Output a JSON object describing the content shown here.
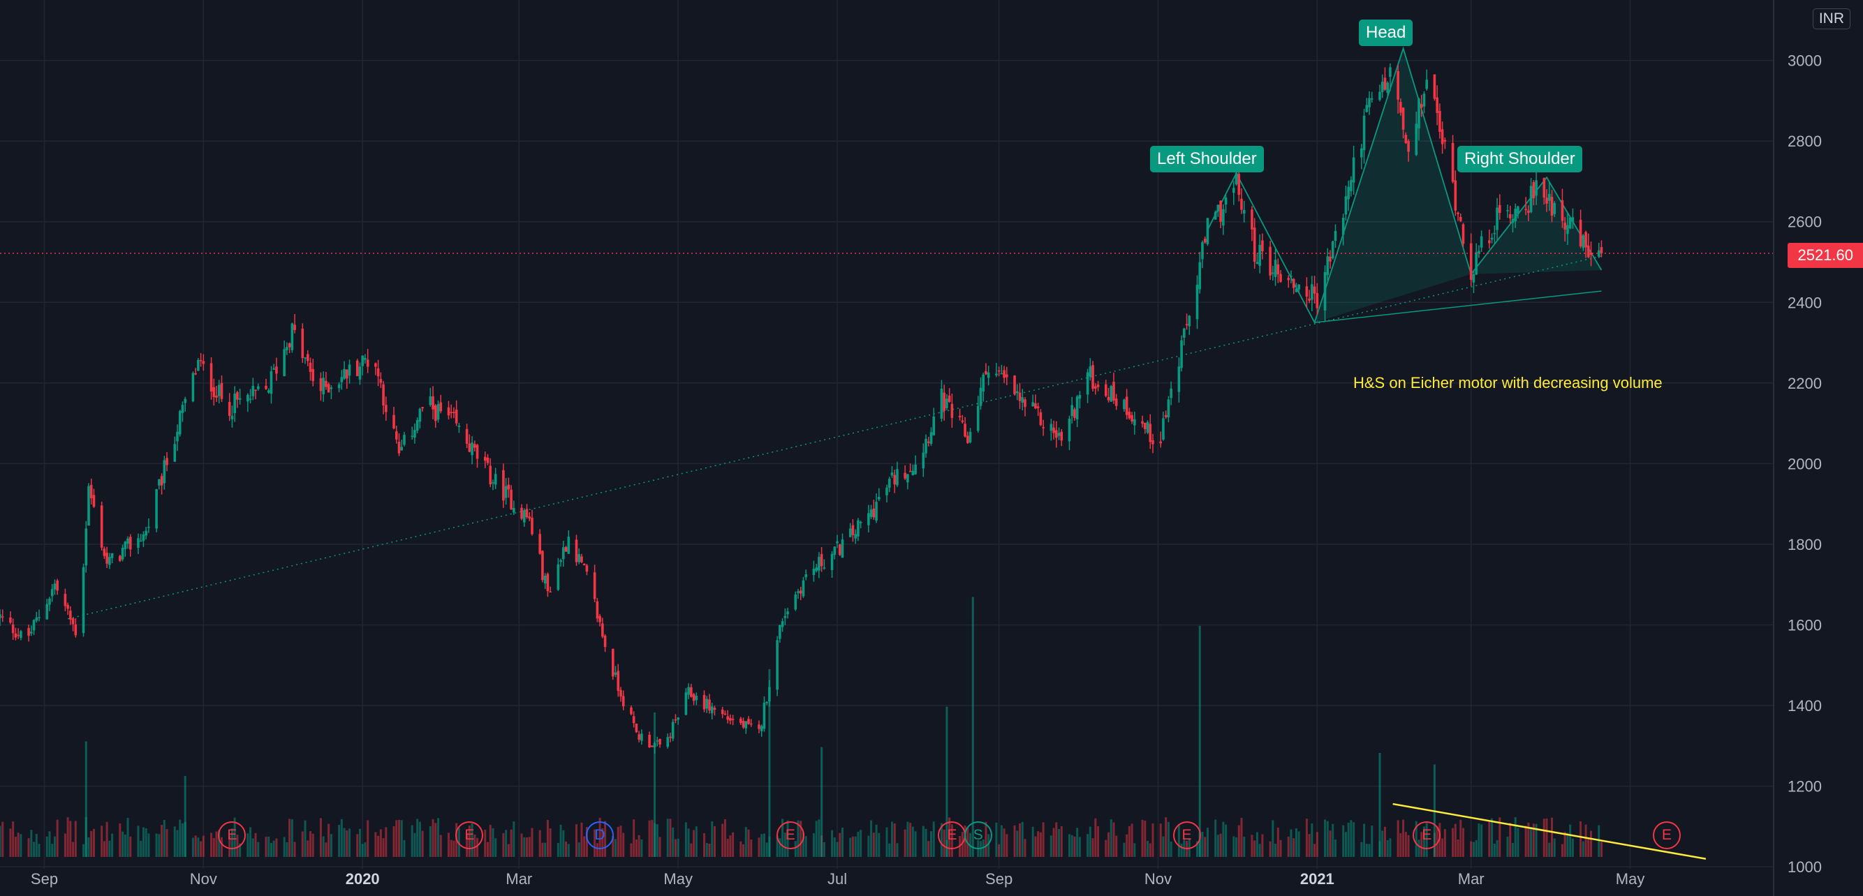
{
  "currency": "INR",
  "last_price": "2521.60",
  "annotations": {
    "left_shoulder": "Left Shoulder",
    "head": "Head",
    "right_shoulder": "Right Shoulder",
    "note": "H&S on Eicher motor with decreasing volume"
  },
  "colors": {
    "up": "#089981",
    "down": "#f23645",
    "background": "#131722",
    "grid": "#232632",
    "note": "#ffeb3b"
  },
  "events": [
    {
      "label": "E",
      "type": "earnings",
      "date": "2019-11-12"
    },
    {
      "label": "E",
      "type": "earnings",
      "date": "2020-02-11"
    },
    {
      "label": "D",
      "type": "dividend",
      "date": "2020-04-01"
    },
    {
      "label": "E",
      "type": "earnings",
      "date": "2020-06-13"
    },
    {
      "label": "E",
      "type": "earnings",
      "date": "2020-08-14"
    },
    {
      "label": "S",
      "type": "split",
      "date": "2020-08-24"
    },
    {
      "label": "E",
      "type": "earnings",
      "date": "2020-11-12"
    },
    {
      "label": "E",
      "type": "earnings",
      "date": "2021-02-12"
    },
    {
      "label": "E",
      "type": "earnings",
      "date": "2021-05-15"
    }
  ],
  "chart_data": {
    "type": "candlestick",
    "title": "",
    "y_axis": {
      "ticks": [
        1000,
        1200,
        1400,
        1600,
        1800,
        2000,
        2200,
        2400,
        2600,
        2800,
        3000
      ],
      "range": [
        995,
        3150
      ]
    },
    "x_axis": {
      "ticks": [
        {
          "label": "Sep",
          "date": "2019-09-01",
          "bold": false
        },
        {
          "label": "Nov",
          "date": "2019-11-01",
          "bold": false
        },
        {
          "label": "2020",
          "date": "2020-01-01",
          "bold": true
        },
        {
          "label": "Mar",
          "date": "2020-03-01",
          "bold": false
        },
        {
          "label": "May",
          "date": "2020-05-01",
          "bold": false
        },
        {
          "label": "Jul",
          "date": "2020-07-01",
          "bold": false
        },
        {
          "label": "Sep",
          "date": "2020-09-01",
          "bold": false
        },
        {
          "label": "Nov",
          "date": "2020-11-01",
          "bold": false
        },
        {
          "label": "2021",
          "date": "2021-01-01",
          "bold": true
        },
        {
          "label": "Mar",
          "date": "2021-03-01",
          "bold": false
        },
        {
          "label": "May",
          "date": "2021-05-01",
          "bold": false
        }
      ],
      "range": [
        "2019-08-15",
        "2021-06-25"
      ]
    },
    "price_keypoints": [
      [
        "2019-08-15",
        1620
      ],
      [
        "2019-08-25",
        1560
      ],
      [
        "2019-09-05",
        1700
      ],
      [
        "2019-09-14",
        1570
      ],
      [
        "2019-09-18",
        1940
      ],
      [
        "2019-09-25",
        1750
      ],
      [
        "2019-10-10",
        1830
      ],
      [
        "2019-10-20",
        2050
      ],
      [
        "2019-10-30",
        2250
      ],
      [
        "2019-11-10",
        2140
      ],
      [
        "2019-11-25",
        2180
      ],
      [
        "2019-12-05",
        2330
      ],
      [
        "2019-12-15",
        2180
      ],
      [
        "2019-12-25",
        2220
      ],
      [
        "2020-01-05",
        2270
      ],
      [
        "2020-01-15",
        2020
      ],
      [
        "2020-01-25",
        2150
      ],
      [
        "2020-02-05",
        2100
      ],
      [
        "2020-02-20",
        1960
      ],
      [
        "2020-03-05",
        1860
      ],
      [
        "2020-03-12",
        1680
      ],
      [
        "2020-03-20",
        1820
      ],
      [
        "2020-03-28",
        1700
      ],
      [
        "2020-04-05",
        1500
      ],
      [
        "2020-04-15",
        1330
      ],
      [
        "2020-04-25",
        1290
      ],
      [
        "2020-05-05",
        1430
      ],
      [
        "2020-05-20",
        1370
      ],
      [
        "2020-06-01",
        1330
      ],
      [
        "2020-06-10",
        1620
      ],
      [
        "2020-06-20",
        1730
      ],
      [
        "2020-06-30",
        1780
      ],
      [
        "2020-07-12",
        1860
      ],
      [
        "2020-07-22",
        1960
      ],
      [
        "2020-08-01",
        2010
      ],
      [
        "2020-08-10",
        2160
      ],
      [
        "2020-08-20",
        2060
      ],
      [
        "2020-08-28",
        2250
      ],
      [
        "2020-09-10",
        2150
      ],
      [
        "2020-09-25",
        2060
      ],
      [
        "2020-10-05",
        2220
      ],
      [
        "2020-10-20",
        2140
      ],
      [
        "2020-11-01",
        2050
      ],
      [
        "2020-11-10",
        2280
      ],
      [
        "2020-11-20",
        2580
      ],
      [
        "2020-12-01",
        2690
      ],
      [
        "2020-12-08",
        2530
      ],
      [
        "2020-12-20",
        2460
      ],
      [
        "2021-01-01",
        2410
      ],
      [
        "2021-01-10",
        2600
      ],
      [
        "2021-01-20",
        2870
      ],
      [
        "2021-01-30",
        2970
      ],
      [
        "2021-02-05",
        2750
      ],
      [
        "2021-02-12",
        2960
      ],
      [
        "2021-02-20",
        2750
      ],
      [
        "2021-03-01",
        2480
      ],
      [
        "2021-03-10",
        2600
      ],
      [
        "2021-03-20",
        2640
      ],
      [
        "2021-03-28",
        2680
      ],
      [
        "2021-04-07",
        2600
      ],
      [
        "2021-04-15",
        2520
      ],
      [
        "2021-04-20",
        2521.6
      ]
    ],
    "neckline": [
      [
        "2019-09-10",
        1615
      ],
      [
        "2021-04-20",
        2515
      ]
    ],
    "pattern_points": [
      [
        "2020-11-20",
        2580
      ],
      [
        "2020-12-01",
        2720
      ],
      [
        "2020-12-31",
        2350
      ],
      [
        "2021-02-03",
        3030
      ],
      [
        "2021-03-01",
        2470
      ],
      [
        "2021-03-30",
        2710
      ],
      [
        "2021-04-20",
        2480
      ]
    ],
    "volume_trend": [
      [
        "2021-01-30",
        0.28
      ],
      [
        "2021-05-30",
        0.09
      ]
    ],
    "volume_spikes": [
      [
        "2019-09-17",
        0.4
      ],
      [
        "2019-10-25",
        0.28
      ],
      [
        "2020-04-22",
        0.5
      ],
      [
        "2020-06-05",
        0.65
      ],
      [
        "2020-06-25",
        0.38
      ],
      [
        "2020-08-12",
        0.52
      ],
      [
        "2020-08-22",
        0.9
      ],
      [
        "2020-11-17",
        0.8
      ],
      [
        "2021-01-25",
        0.36
      ],
      [
        "2021-02-15",
        0.32
      ]
    ]
  }
}
